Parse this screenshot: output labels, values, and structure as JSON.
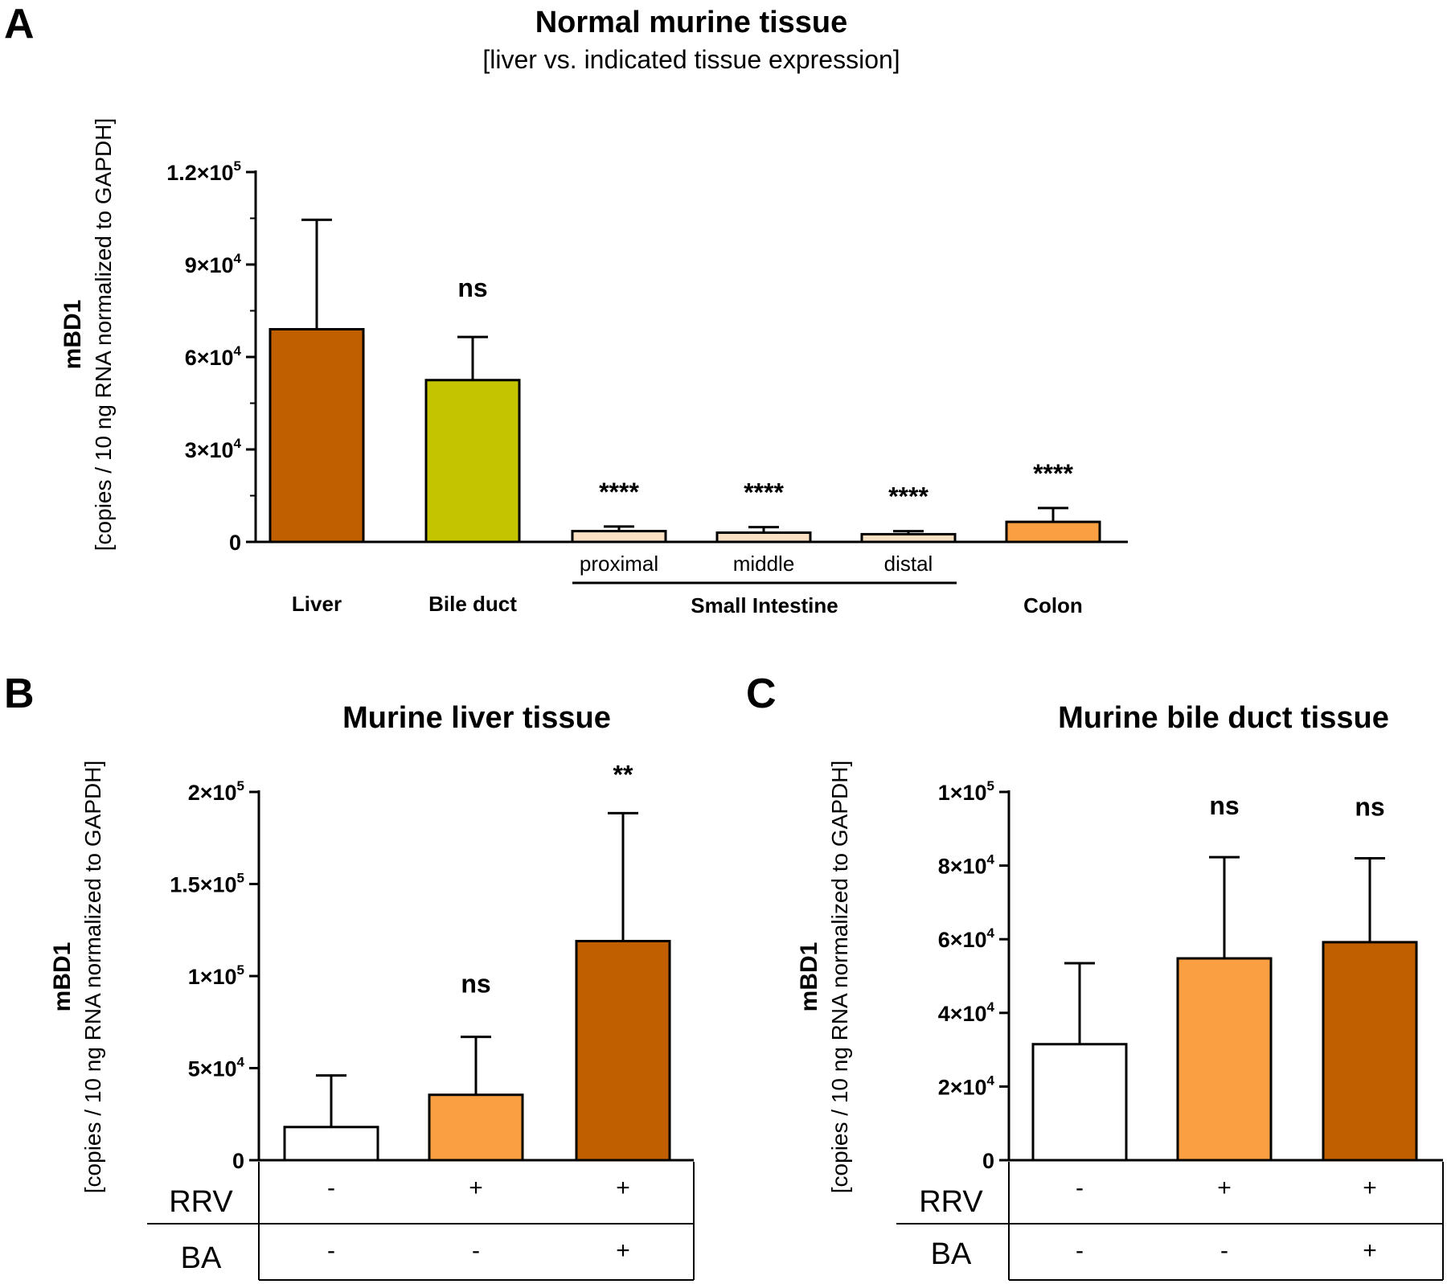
{
  "chart_data": [
    {
      "panel": "A",
      "type": "bar",
      "title": "Normal murine tissue",
      "subtitle": "[liver vs. indicated tissue expression]",
      "ylabel": "mBD1",
      "ylabel_sub": "[copies / 10 ng RNA normalized to GAPDH]",
      "ylim": [
        0,
        120000
      ],
      "y_ticks": [
        {
          "value": 0,
          "base": "0",
          "exp": ""
        },
        {
          "value": 30000,
          "base": "3×10",
          "exp": "4"
        },
        {
          "value": 60000,
          "base": "6×10",
          "exp": "4"
        },
        {
          "value": 90000,
          "base": "9×10",
          "exp": "4"
        },
        {
          "value": 120000,
          "base": "1.2×10",
          "exp": "5"
        }
      ],
      "categories": [
        "Liver",
        "Bile duct",
        "proximal",
        "middle",
        "distal",
        "Colon"
      ],
      "group_label": "Small Intestine",
      "values": [
        69000,
        52500,
        3500,
        3000,
        2500,
        6500
      ],
      "errors": [
        35500,
        14000,
        1500,
        1800,
        1000,
        4500
      ],
      "colors": [
        "#c05f00",
        "#c4c400",
        "#fbe0c4",
        "#fbe0c4",
        "#fbe0c4",
        "#fba042"
      ],
      "significance": [
        "",
        "ns",
        "****",
        "****",
        "****",
        "****"
      ]
    },
    {
      "panel": "B",
      "type": "bar",
      "title": "Murine liver tissue",
      "ylabel": "mBD1",
      "ylabel_sub": "[copies / 10 ng RNA normalized to GAPDH]",
      "ylim": [
        0,
        200000
      ],
      "y_ticks": [
        {
          "value": 0,
          "base": "0",
          "exp": ""
        },
        {
          "value": 50000,
          "base": "5×10",
          "exp": "4"
        },
        {
          "value": 100000,
          "base": "1×10",
          "exp": "5"
        },
        {
          "value": 150000,
          "base": "1.5×10",
          "exp": "5"
        },
        {
          "value": 200000,
          "base": "2×10",
          "exp": "5"
        }
      ],
      "values": [
        18000,
        35500,
        119000
      ],
      "errors": [
        28000,
        31500,
        69500
      ],
      "colors": [
        "#ffffff",
        "#fba042",
        "#c05f00"
      ],
      "significance": [
        "",
        "ns",
        "**"
      ],
      "table": {
        "rows": [
          {
            "label": "RRV",
            "values": [
              "-",
              "+",
              "+"
            ]
          },
          {
            "label": "BA",
            "values": [
              "-",
              "-",
              "+"
            ]
          }
        ]
      }
    },
    {
      "panel": "C",
      "type": "bar",
      "title": "Murine bile duct tissue",
      "ylabel": "mBD1",
      "ylabel_sub": "[copies / 10 ng RNA normalized to GAPDH]",
      "ylim": [
        0,
        100000
      ],
      "y_ticks": [
        {
          "value": 0,
          "base": "0",
          "exp": ""
        },
        {
          "value": 20000,
          "base": "2×10",
          "exp": "4"
        },
        {
          "value": 40000,
          "base": "4×10",
          "exp": "4"
        },
        {
          "value": 60000,
          "base": "6×10",
          "exp": "4"
        },
        {
          "value": 80000,
          "base": "8×10",
          "exp": "4"
        },
        {
          "value": 100000,
          "base": "1×10",
          "exp": "5"
        }
      ],
      "values": [
        31500,
        54800,
        59200
      ],
      "errors": [
        22000,
        27500,
        22800
      ],
      "colors": [
        "#ffffff",
        "#fba042",
        "#c05f00"
      ],
      "significance": [
        "",
        "ns",
        "ns"
      ],
      "table": {
        "rows": [
          {
            "label": "RRV",
            "values": [
              "-",
              "+",
              "+"
            ]
          },
          {
            "label": "BA",
            "values": [
              "-",
              "-",
              "+"
            ]
          }
        ]
      }
    }
  ]
}
